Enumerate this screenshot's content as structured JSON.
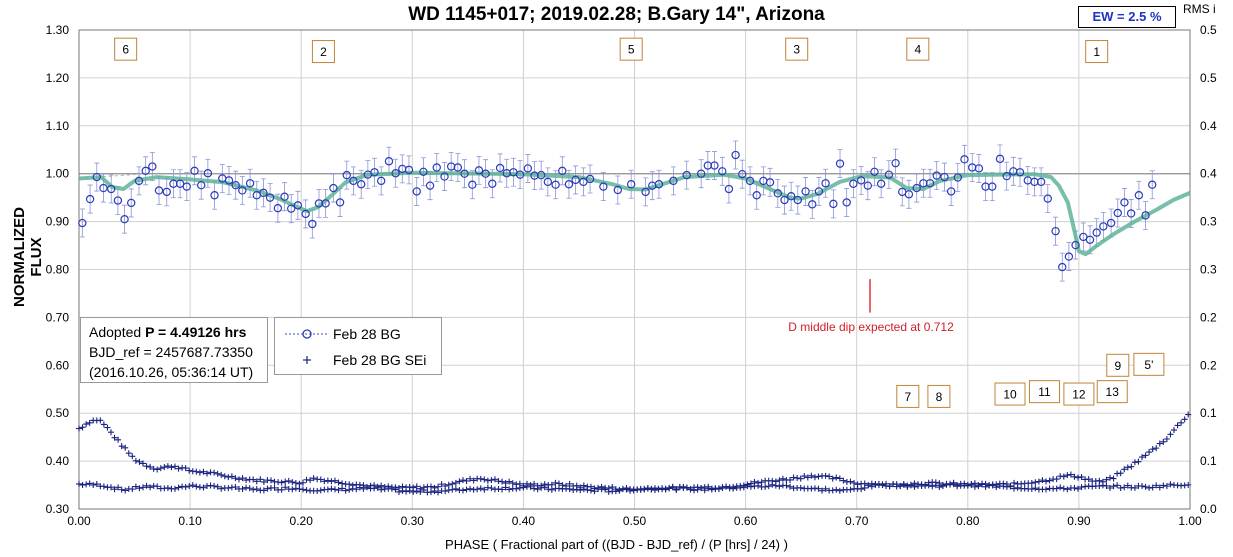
{
  "chart_data": {
    "type": "scatter",
    "title": "WD 1145+017; 2019.02.28; B.Gary 14\", Arizona",
    "xlabel": "PHASE ( Fractional part of ((BJD - BJD_ref) / (P [hrs] / 24) )",
    "ylabel": "NORMALIZED FLUX",
    "y2label": "RMS i",
    "xlim": [
      0.0,
      1.0
    ],
    "ylim": [
      0.3,
      1.3
    ],
    "y2lim": [
      0.0,
      0.5
    ],
    "x_ticks": [
      "0.00",
      "0.10",
      "0.20",
      "0.30",
      "0.40",
      "0.50",
      "0.60",
      "0.70",
      "0.80",
      "0.90",
      "1.00"
    ],
    "y_ticks": [
      "0.30",
      "0.40",
      "0.50",
      "0.60",
      "0.70",
      "0.80",
      "0.90",
      "1.00",
      "1.10",
      "1.20",
      "1.30"
    ],
    "y2_ticks": [
      "0.0",
      "0.1",
      "0.1",
      "0.2",
      "0.2",
      "0.3",
      "0.3",
      "0.4",
      "0.4",
      "0.5",
      "0.5"
    ],
    "grid": true,
    "ew_label": "EW =  2.5 %",
    "info": {
      "line1_prefix": "Adopted ",
      "line1_bold": "P = 4.49126 hrs",
      "line2": "BJD_ref = 2457687.73350",
      "line3": "(2016.10.26, 05:36:14 UT)"
    },
    "legend": [
      "Feb 28 BG",
      "Feb 28 BG SEi"
    ],
    "annotation": {
      "text": "D middle dip expected at 0.712",
      "x": 0.712,
      "y_top": 0.78,
      "y_bottom": 0.71
    },
    "dip_labels": [
      {
        "text": "6",
        "x": 0.042,
        "y": 1.26
      },
      {
        "text": "2",
        "x": 0.22,
        "y": 1.255
      },
      {
        "text": "5",
        "x": 0.497,
        "y": 1.26
      },
      {
        "text": "3",
        "x": 0.646,
        "y": 1.26
      },
      {
        "text": "4",
        "x": 0.755,
        "y": 1.26
      },
      {
        "text": "1",
        "x": 0.916,
        "y": 1.255
      },
      {
        "text": "7",
        "x": 0.746,
        "y": 0.535
      },
      {
        "text": "8",
        "x": 0.774,
        "y": 0.535
      },
      {
        "text": "10",
        "x": 0.838,
        "y": 0.54
      },
      {
        "text": "11",
        "x": 0.869,
        "y": 0.545
      },
      {
        "text": "12",
        "x": 0.9,
        "y": 0.54
      },
      {
        "text": "13",
        "x": 0.93,
        "y": 0.545
      },
      {
        "text": "9",
        "x": 0.935,
        "y": 0.6
      },
      {
        "text": "5'",
        "x": 0.963,
        "y": 0.602
      }
    ],
    "flux": [
      [
        0.003,
        0.897
      ],
      [
        0.01,
        0.947
      ],
      [
        0.016,
        0.993
      ],
      [
        0.022,
        0.97
      ],
      [
        0.029,
        0.968
      ],
      [
        0.035,
        0.944
      ],
      [
        0.041,
        0.905
      ],
      [
        0.047,
        0.939
      ],
      [
        0.054,
        0.985
      ],
      [
        0.06,
        1.006
      ],
      [
        0.066,
        1.015
      ],
      [
        0.072,
        0.965
      ],
      [
        0.079,
        0.962
      ],
      [
        0.085,
        0.979
      ],
      [
        0.091,
        0.979
      ],
      [
        0.097,
        0.973
      ],
      [
        0.104,
        1.006
      ],
      [
        0.11,
        0.976
      ],
      [
        0.116,
        1.001
      ],
      [
        0.122,
        0.955
      ],
      [
        0.129,
        0.99
      ],
      [
        0.135,
        0.986
      ],
      [
        0.141,
        0.976
      ],
      [
        0.147,
        0.965
      ],
      [
        0.154,
        0.98
      ],
      [
        0.16,
        0.955
      ],
      [
        0.166,
        0.96
      ],
      [
        0.172,
        0.95
      ],
      [
        0.179,
        0.928
      ],
      [
        0.185,
        0.952
      ],
      [
        0.191,
        0.927
      ],
      [
        0.197,
        0.934
      ],
      [
        0.204,
        0.916
      ],
      [
        0.21,
        0.895
      ],
      [
        0.216,
        0.938
      ],
      [
        0.222,
        0.938
      ],
      [
        0.229,
        0.97
      ],
      [
        0.235,
        0.94
      ],
      [
        0.241,
        0.997
      ],
      [
        0.247,
        0.985
      ],
      [
        0.254,
        0.978
      ],
      [
        0.26,
        0.998
      ],
      [
        0.266,
        1.003
      ],
      [
        0.272,
        0.985
      ],
      [
        0.279,
        1.026
      ],
      [
        0.285,
        1.001
      ],
      [
        0.291,
        1.01
      ],
      [
        0.297,
        1.008
      ],
      [
        0.304,
        0.963
      ],
      [
        0.31,
        1.004
      ],
      [
        0.316,
        0.975
      ],
      [
        0.322,
        1.013
      ],
      [
        0.329,
        0.994
      ],
      [
        0.335,
        1.015
      ],
      [
        0.341,
        1.013
      ],
      [
        0.347,
        1.0
      ],
      [
        0.354,
        0.977
      ],
      [
        0.36,
        1.007
      ],
      [
        0.366,
        1.0
      ],
      [
        0.372,
        0.979
      ],
      [
        0.379,
        1.012
      ],
      [
        0.385,
        1.001
      ],
      [
        0.391,
        1.003
      ],
      [
        0.397,
        0.998
      ],
      [
        0.404,
        1.011
      ],
      [
        0.41,
        0.996
      ],
      [
        0.416,
        0.997
      ],
      [
        0.422,
        0.983
      ],
      [
        0.429,
        0.977
      ],
      [
        0.435,
        1.006
      ],
      [
        0.441,
        0.978
      ],
      [
        0.447,
        0.987
      ],
      [
        0.454,
        0.983
      ],
      [
        0.46,
        0.989
      ],
      [
        0.472,
        0.973
      ],
      [
        0.485,
        0.966
      ],
      [
        0.497,
        0.978
      ],
      [
        0.51,
        0.962
      ],
      [
        0.516,
        0.975
      ],
      [
        0.522,
        0.978
      ],
      [
        0.535,
        0.985
      ],
      [
        0.547,
        0.997
      ],
      [
        0.56,
        1.0
      ],
      [
        0.566,
        1.017
      ],
      [
        0.572,
        1.017
      ],
      [
        0.579,
        1.005
      ],
      [
        0.585,
        0.968
      ],
      [
        0.591,
        1.039
      ],
      [
        0.597,
        0.999
      ],
      [
        0.604,
        0.985
      ],
      [
        0.61,
        0.955
      ],
      [
        0.616,
        0.985
      ],
      [
        0.622,
        0.982
      ],
      [
        0.629,
        0.959
      ],
      [
        0.635,
        0.945
      ],
      [
        0.641,
        0.953
      ],
      [
        0.647,
        0.945
      ],
      [
        0.654,
        0.963
      ],
      [
        0.66,
        0.936
      ],
      [
        0.666,
        0.963
      ],
      [
        0.672,
        0.98
      ],
      [
        0.679,
        0.937
      ],
      [
        0.685,
        1.021
      ],
      [
        0.691,
        0.94
      ],
      [
        0.697,
        0.979
      ],
      [
        0.704,
        0.986
      ],
      [
        0.71,
        0.975
      ],
      [
        0.716,
        1.004
      ],
      [
        0.722,
        0.979
      ],
      [
        0.729,
        0.998
      ],
      [
        0.735,
        1.022
      ],
      [
        0.741,
        0.962
      ],
      [
        0.747,
        0.957
      ],
      [
        0.754,
        0.97
      ],
      [
        0.76,
        0.98
      ],
      [
        0.766,
        0.98
      ],
      [
        0.772,
        0.996
      ],
      [
        0.779,
        0.993
      ],
      [
        0.785,
        0.963
      ],
      [
        0.791,
        0.992
      ],
      [
        0.797,
        1.03
      ],
      [
        0.804,
        1.013
      ],
      [
        0.81,
        1.011
      ],
      [
        0.816,
        0.973
      ],
      [
        0.822,
        0.973
      ],
      [
        0.829,
        1.031
      ],
      [
        0.835,
        0.995
      ],
      [
        0.841,
        1.005
      ],
      [
        0.847,
        1.003
      ],
      [
        0.854,
        0.986
      ],
      [
        0.86,
        0.983
      ],
      [
        0.866,
        0.983
      ],
      [
        0.872,
        0.948
      ],
      [
        0.879,
        0.88
      ],
      [
        0.885,
        0.805
      ],
      [
        0.891,
        0.827
      ],
      [
        0.897,
        0.851
      ],
      [
        0.904,
        0.868
      ],
      [
        0.91,
        0.862
      ],
      [
        0.916,
        0.877
      ],
      [
        0.922,
        0.89
      ],
      [
        0.929,
        0.897
      ],
      [
        0.935,
        0.918
      ],
      [
        0.941,
        0.94
      ],
      [
        0.947,
        0.917
      ],
      [
        0.954,
        0.955
      ],
      [
        0.96,
        0.913
      ],
      [
        0.966,
        0.977
      ]
    ],
    "model": [
      [
        0.0,
        0.99
      ],
      [
        0.02,
        0.993
      ],
      [
        0.03,
        0.972
      ],
      [
        0.04,
        0.968
      ],
      [
        0.05,
        0.985
      ],
      [
        0.07,
        0.993
      ],
      [
        0.1,
        0.988
      ],
      [
        0.13,
        0.982
      ],
      [
        0.16,
        0.965
      ],
      [
        0.18,
        0.948
      ],
      [
        0.195,
        0.932
      ],
      [
        0.205,
        0.922
      ],
      [
        0.215,
        0.93
      ],
      [
        0.225,
        0.95
      ],
      [
        0.24,
        0.982
      ],
      [
        0.26,
        0.998
      ],
      [
        0.3,
        1.002
      ],
      [
        0.4,
        0.999
      ],
      [
        0.45,
        0.993
      ],
      [
        0.48,
        0.978
      ],
      [
        0.495,
        0.968
      ],
      [
        0.51,
        0.967
      ],
      [
        0.525,
        0.978
      ],
      [
        0.545,
        0.993
      ],
      [
        0.58,
        0.998
      ],
      [
        0.6,
        0.99
      ],
      [
        0.62,
        0.97
      ],
      [
        0.64,
        0.95
      ],
      [
        0.65,
        0.948
      ],
      [
        0.665,
        0.958
      ],
      [
        0.685,
        0.983
      ],
      [
        0.705,
        0.995
      ],
      [
        0.73,
        0.992
      ],
      [
        0.745,
        0.97
      ],
      [
        0.76,
        0.968
      ],
      [
        0.775,
        0.985
      ],
      [
        0.8,
        0.997
      ],
      [
        0.86,
        0.999
      ],
      [
        0.875,
        0.993
      ],
      [
        0.882,
        0.975
      ],
      [
        0.89,
        0.94
      ],
      [
        0.896,
        0.88
      ],
      [
        0.9,
        0.838
      ],
      [
        0.906,
        0.832
      ],
      [
        0.915,
        0.848
      ],
      [
        0.93,
        0.872
      ],
      [
        0.95,
        0.9
      ],
      [
        0.97,
        0.925
      ],
      [
        0.985,
        0.945
      ],
      [
        1.0,
        0.96
      ]
    ],
    "rms_upper": [
      [
        0.0,
        0.468
      ],
      [
        0.01,
        0.483
      ],
      [
        0.018,
        0.487
      ],
      [
        0.026,
        0.468
      ],
      [
        0.034,
        0.445
      ],
      [
        0.042,
        0.424
      ],
      [
        0.05,
        0.404
      ],
      [
        0.06,
        0.392
      ],
      [
        0.07,
        0.384
      ],
      [
        0.085,
        0.39
      ],
      [
        0.1,
        0.38
      ],
      [
        0.12,
        0.374
      ],
      [
        0.14,
        0.366
      ],
      [
        0.16,
        0.36
      ],
      [
        0.18,
        0.358
      ],
      [
        0.2,
        0.355
      ],
      [
        0.21,
        0.364
      ],
      [
        0.23,
        0.358
      ],
      [
        0.26,
        0.348
      ],
      [
        0.29,
        0.344
      ],
      [
        0.32,
        0.346
      ],
      [
        0.34,
        0.356
      ],
      [
        0.36,
        0.364
      ],
      [
        0.38,
        0.358
      ],
      [
        0.4,
        0.35
      ],
      [
        0.43,
        0.352
      ],
      [
        0.46,
        0.346
      ],
      [
        0.5,
        0.341
      ],
      [
        0.54,
        0.344
      ],
      [
        0.58,
        0.346
      ],
      [
        0.62,
        0.358
      ],
      [
        0.64,
        0.363
      ],
      [
        0.66,
        0.37
      ],
      [
        0.68,
        0.364
      ],
      [
        0.7,
        0.354
      ],
      [
        0.73,
        0.35
      ],
      [
        0.76,
        0.354
      ],
      [
        0.8,
        0.351
      ],
      [
        0.84,
        0.351
      ],
      [
        0.87,
        0.36
      ],
      [
        0.89,
        0.37
      ],
      [
        0.9,
        0.368
      ],
      [
        0.91,
        0.36
      ],
      [
        0.92,
        0.356
      ],
      [
        0.93,
        0.364
      ],
      [
        0.94,
        0.38
      ],
      [
        0.95,
        0.395
      ],
      [
        0.96,
        0.412
      ],
      [
        0.97,
        0.43
      ],
      [
        0.98,
        0.45
      ],
      [
        0.99,
        0.476
      ],
      [
        1.0,
        0.502
      ]
    ],
    "rms_lower": [
      [
        0.0,
        0.352
      ],
      [
        0.02,
        0.35
      ],
      [
        0.04,
        0.34
      ],
      [
        0.06,
        0.347
      ],
      [
        0.08,
        0.343
      ],
      [
        0.1,
        0.348
      ],
      [
        0.13,
        0.345
      ],
      [
        0.16,
        0.34
      ],
      [
        0.19,
        0.344
      ],
      [
        0.22,
        0.339
      ],
      [
        0.26,
        0.343
      ],
      [
        0.3,
        0.336
      ],
      [
        0.33,
        0.338
      ],
      [
        0.36,
        0.343
      ],
      [
        0.4,
        0.344
      ],
      [
        0.44,
        0.341
      ],
      [
        0.48,
        0.338
      ],
      [
        0.52,
        0.344
      ],
      [
        0.56,
        0.341
      ],
      [
        0.6,
        0.346
      ],
      [
        0.63,
        0.349
      ],
      [
        0.66,
        0.342
      ],
      [
        0.69,
        0.338
      ],
      [
        0.72,
        0.351
      ],
      [
        0.76,
        0.348
      ],
      [
        0.8,
        0.35
      ],
      [
        0.84,
        0.345
      ],
      [
        0.88,
        0.342
      ],
      [
        0.92,
        0.347
      ],
      [
        0.96,
        0.346
      ],
      [
        1.0,
        0.352
      ]
    ]
  }
}
